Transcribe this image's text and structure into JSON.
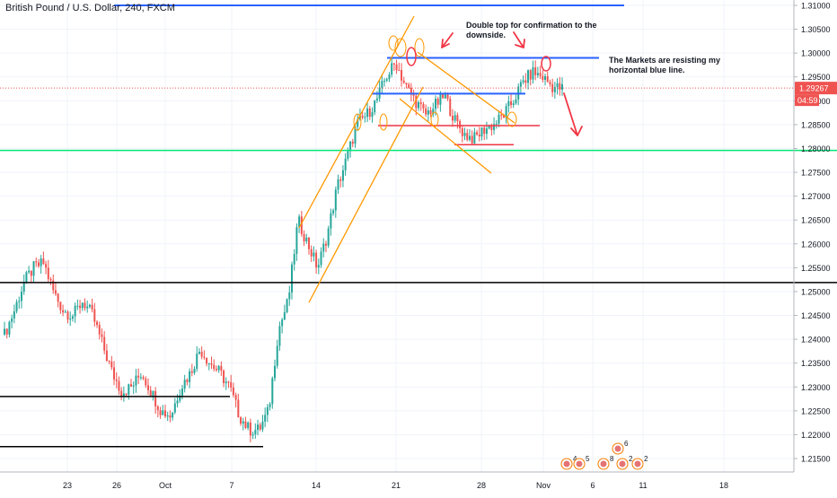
{
  "symbol": {
    "title": "British Pound / U.S. Dollar, 240, FXCM"
  },
  "annotations": {
    "double_top": "Double top for confirmation to the downside.",
    "resisting": "The Markets are resisting my horizontal blue line."
  },
  "price_tag": {
    "value": "1.29267",
    "timer": "04:59",
    "color": "#ef5350"
  },
  "colors": {
    "bull": "#26a69a",
    "bear": "#ef5350",
    "channel": "#ff9800",
    "resistance": "#2962ff",
    "support_green": "#00e676",
    "support_black": "#000000",
    "red_line": "#f23645"
  },
  "event_badges": [
    "4",
    "5",
    "8",
    "2",
    "6",
    "2"
  ],
  "chart_data": {
    "type": "candlestick",
    "title": "British Pound / U.S. Dollar, 240, FXCM",
    "xlabel": "",
    "ylabel": "",
    "ylim": [
      1.2125,
      1.3105
    ],
    "grid": true,
    "x_ticks": [
      "23",
      "26",
      "Oct",
      "7",
      "14",
      "21",
      "28",
      "Nov",
      "6",
      "11",
      "18"
    ],
    "y_ticks": [
      "1.31000",
      "1.30500",
      "1.30000",
      "1.29500",
      "1.29000",
      "1.28500",
      "1.28000",
      "1.27500",
      "1.27000",
      "1.26500",
      "1.26000",
      "1.25500",
      "1.25000",
      "1.24500",
      "1.24000",
      "1.23500",
      "1.23000",
      "1.22500",
      "1.22000",
      "1.21500"
    ],
    "price_path": [
      [
        0,
        1.241
      ],
      [
        1,
        1.246
      ],
      [
        2,
        1.252
      ],
      [
        3,
        1.255
      ],
      [
        4,
        1.256
      ],
      [
        5,
        1.25
      ],
      [
        6,
        1.246
      ],
      [
        7,
        1.245
      ],
      [
        8,
        1.248
      ],
      [
        9,
        1.245
      ],
      [
        10,
        1.239
      ],
      [
        11,
        1.233
      ],
      [
        12,
        1.229
      ],
      [
        13,
        1.23
      ],
      [
        14,
        1.233
      ],
      [
        15,
        1.229
      ],
      [
        16,
        1.225
      ],
      [
        17,
        1.224
      ],
      [
        18,
        1.23
      ],
      [
        19,
        1.233
      ],
      [
        20,
        1.238
      ],
      [
        21,
        1.235
      ],
      [
        22,
        1.233
      ],
      [
        23,
        1.23
      ],
      [
        24,
        1.224
      ],
      [
        25,
        1.221
      ],
      [
        26,
        1.221
      ],
      [
        27,
        1.225
      ],
      [
        28,
        1.242
      ],
      [
        29,
        1.248
      ],
      [
        30,
        1.265
      ],
      [
        31,
        1.26
      ],
      [
        32,
        1.255
      ],
      [
        33,
        1.262
      ],
      [
        34,
        1.272
      ],
      [
        35,
        1.278
      ],
      [
        36,
        1.285
      ],
      [
        37,
        1.287
      ],
      [
        38,
        1.29
      ],
      [
        39,
        1.295
      ],
      [
        40,
        1.298
      ],
      [
        41,
        1.293
      ],
      [
        42,
        1.29
      ],
      [
        43,
        1.287
      ],
      [
        44,
        1.289
      ],
      [
        45,
        1.291
      ],
      [
        46,
        1.286
      ],
      [
        47,
        1.283
      ],
      [
        48,
        1.282
      ],
      [
        49,
        1.284
      ],
      [
        50,
        1.285
      ],
      [
        51,
        1.287
      ],
      [
        52,
        1.29
      ],
      [
        53,
        1.294
      ],
      [
        54,
        1.296
      ],
      [
        55,
        1.295
      ],
      [
        56,
        1.293
      ],
      [
        57,
        1.2925
      ]
    ],
    "horizontal_levels": [
      {
        "price": 1.31,
        "color": "blue"
      },
      {
        "price": 1.299,
        "color": "blue"
      },
      {
        "price": 1.2915,
        "color": "blue"
      },
      {
        "price": 1.2848,
        "color": "red"
      },
      {
        "price": 1.2808,
        "color": "red"
      },
      {
        "price": 1.2796,
        "color": "green"
      },
      {
        "price": 1.2519,
        "color": "black"
      },
      {
        "price": 1.228,
        "color": "black"
      },
      {
        "price": 1.2175,
        "color": "black"
      }
    ],
    "last_price": 1.29267
  }
}
